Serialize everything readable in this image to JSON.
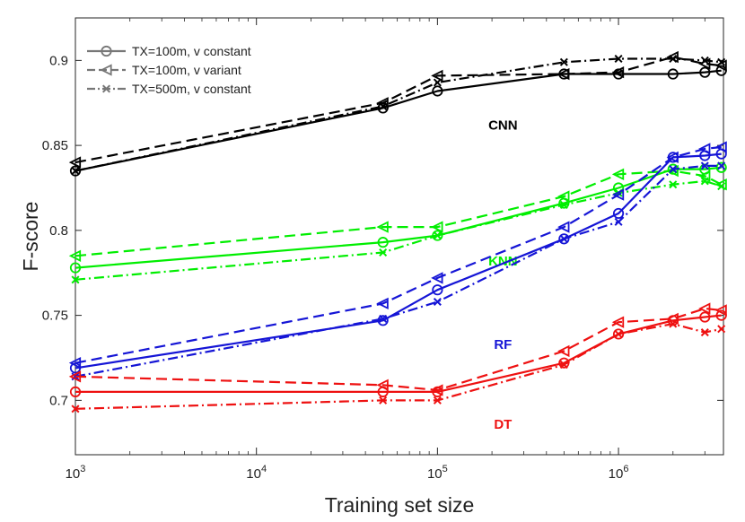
{
  "chart_data": {
    "type": "line",
    "title": "",
    "xlabel": "Training set size",
    "ylabel": "F-score",
    "xscale": "log",
    "xlim": [
      1000,
      3800000
    ],
    "ylim": [
      0.668,
      0.925
    ],
    "grid": false,
    "legend_position": "top-left",
    "x": [
      1000,
      50000,
      100000,
      500000,
      1000000,
      2000000,
      3000000,
      3700000
    ],
    "x_ticks": [
      {
        "value": 1000,
        "base": "10",
        "exp": "3"
      },
      {
        "value": 10000,
        "base": "10",
        "exp": "4"
      },
      {
        "value": 100000,
        "base": "10",
        "exp": "5"
      },
      {
        "value": 1000000,
        "base": "10",
        "exp": "6"
      }
    ],
    "y_ticks": [
      {
        "value": 0.7,
        "label": "0.7"
      },
      {
        "value": 0.75,
        "label": "0.75"
      },
      {
        "value": 0.8,
        "label": "0.8"
      },
      {
        "value": 0.85,
        "label": "0.85"
      },
      {
        "value": 0.9,
        "label": "0.9"
      }
    ],
    "legend": [
      {
        "label": "TX=100m, v constant",
        "style": "solid",
        "marker": "circle"
      },
      {
        "label": "TX=100m, v variant",
        "style": "dashed",
        "marker": "triangle-left"
      },
      {
        "label": "TX=500m, v constant",
        "style": "dashdot",
        "marker": "x"
      }
    ],
    "models": [
      {
        "name": "CNN",
        "color": "#000000",
        "label": "CNN",
        "label_pos": [
          230000,
          0.862
        ],
        "series": [
          {
            "name": "TX=100m, v constant",
            "style": "solid",
            "marker": "circle",
            "values": [
              0.835,
              0.872,
              0.882,
              0.892,
              0.892,
              0.892,
              0.893,
              0.894
            ]
          },
          {
            "name": "TX=100m, v variant",
            "style": "dashed",
            "marker": "triangle-left",
            "values": [
              0.84,
              0.875,
              0.891,
              0.892,
              0.893,
              0.902,
              0.898,
              0.897
            ]
          },
          {
            "name": "TX=500m, v constant",
            "style": "dashdot",
            "marker": "x",
            "values": [
              0.835,
              0.873,
              0.887,
              0.899,
              0.901,
              0.901,
              0.9,
              0.899
            ]
          }
        ]
      },
      {
        "name": "KNN",
        "color": "#00EE00",
        "label": "KNN",
        "label_pos": [
          230000,
          0.782
        ],
        "series": [
          {
            "name": "TX=100m, v constant",
            "style": "solid",
            "marker": "circle",
            "values": [
              0.778,
              0.793,
              0.797,
              0.816,
              0.825,
              0.836,
              0.836,
              0.837
            ]
          },
          {
            "name": "TX=100m, v variant",
            "style": "dashed",
            "marker": "triangle-left",
            "values": [
              0.785,
              0.802,
              0.802,
              0.82,
              0.833,
              0.835,
              0.832,
              0.827
            ]
          },
          {
            "name": "TX=500m, v constant",
            "style": "dashdot",
            "marker": "x",
            "values": [
              0.771,
              0.787,
              0.797,
              0.815,
              0.822,
              0.827,
              0.829,
              0.826
            ]
          }
        ]
      },
      {
        "name": "RF",
        "color": "#1515D6",
        "label": "RF",
        "label_pos": [
          230000,
          0.733
        ],
        "series": [
          {
            "name": "TX=100m, v constant",
            "style": "solid",
            "marker": "circle",
            "values": [
              0.719,
              0.747,
              0.765,
              0.795,
              0.81,
              0.843,
              0.844,
              0.845
            ]
          },
          {
            "name": "TX=100m, v variant",
            "style": "dashed",
            "marker": "triangle-left",
            "values": [
              0.722,
              0.757,
              0.772,
              0.802,
              0.821,
              0.843,
              0.848,
              0.849
            ]
          },
          {
            "name": "TX=500m, v constant",
            "style": "dashdot",
            "marker": "x",
            "values": [
              0.714,
              0.748,
              0.758,
              0.795,
              0.805,
              0.836,
              0.838,
              0.838
            ]
          }
        ]
      },
      {
        "name": "DT",
        "color": "#EE1111",
        "label": "DT",
        "label_pos": [
          230000,
          0.686
        ],
        "series": [
          {
            "name": "TX=100m, v constant",
            "style": "solid",
            "marker": "circle",
            "values": [
              0.705,
              0.705,
              0.705,
              0.722,
              0.739,
              0.747,
              0.749,
              0.75
            ]
          },
          {
            "name": "TX=100m, v variant",
            "style": "dashed",
            "marker": "triangle-left",
            "values": [
              0.714,
              0.709,
              0.706,
              0.729,
              0.746,
              0.748,
              0.754,
              0.753
            ]
          },
          {
            "name": "TX=500m, v constant",
            "style": "dashdot",
            "marker": "x",
            "values": [
              0.695,
              0.7,
              0.7,
              0.721,
              0.739,
              0.745,
              0.74,
              0.742
            ]
          }
        ]
      }
    ]
  }
}
